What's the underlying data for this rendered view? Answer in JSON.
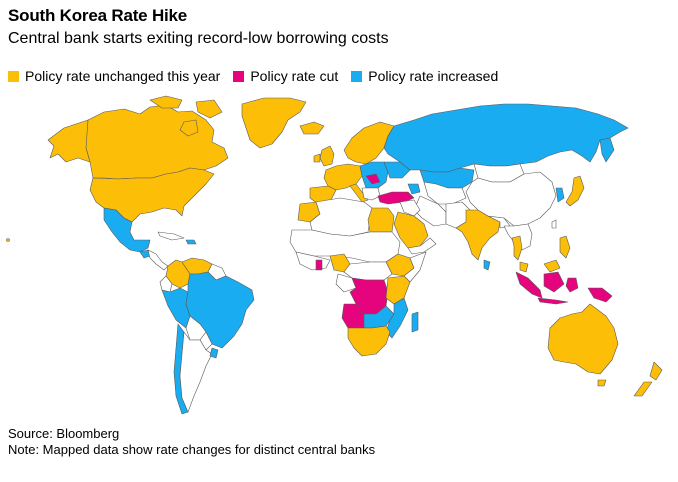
{
  "header": {
    "title": "South Korea Rate Hike",
    "subtitle": "Central bank starts exiting record-low borrowing costs"
  },
  "legend": {
    "unchanged": {
      "label": "Policy rate unchanged this year",
      "color": "#FDBE08"
    },
    "cut": {
      "label": "Policy rate cut",
      "color": "#E6037E"
    },
    "increased": {
      "label": "Policy rate increased",
      "color": "#1AACF0"
    }
  },
  "map": {
    "land_color": "#ffffff",
    "border_color": "#5a5a5a",
    "regions": {
      "unchanged": [
        "United States",
        "Canada",
        "Greenland",
        "Iceland",
        "Norway",
        "Sweden",
        "Finland",
        "Western Europe",
        "United Kingdom",
        "Egypt",
        "Morocco",
        "Nigeria",
        "Saudi Arabia",
        "India",
        "Thailand",
        "Philippines",
        "Japan",
        "Australia",
        "New Zealand",
        "Colombia",
        "Venezuela",
        "Southern Africa",
        "Ethiopia",
        "Kenya"
      ],
      "cut": [
        "Turkey",
        "Democratic Republic of the Congo",
        "Angola",
        "Ghana",
        "Indonesia",
        "Papua New Guinea"
      ],
      "increased": [
        "Russia",
        "Kazakhstan",
        "Brazil",
        "Peru",
        "Mexico",
        "Eastern Europe",
        "Zambia",
        "Mozambique",
        "Sri Lanka",
        "Guatemala"
      ]
    }
  },
  "footer": {
    "source": "Source: Bloomberg",
    "note": "Note: Mapped data show rate changes for distinct central banks"
  }
}
